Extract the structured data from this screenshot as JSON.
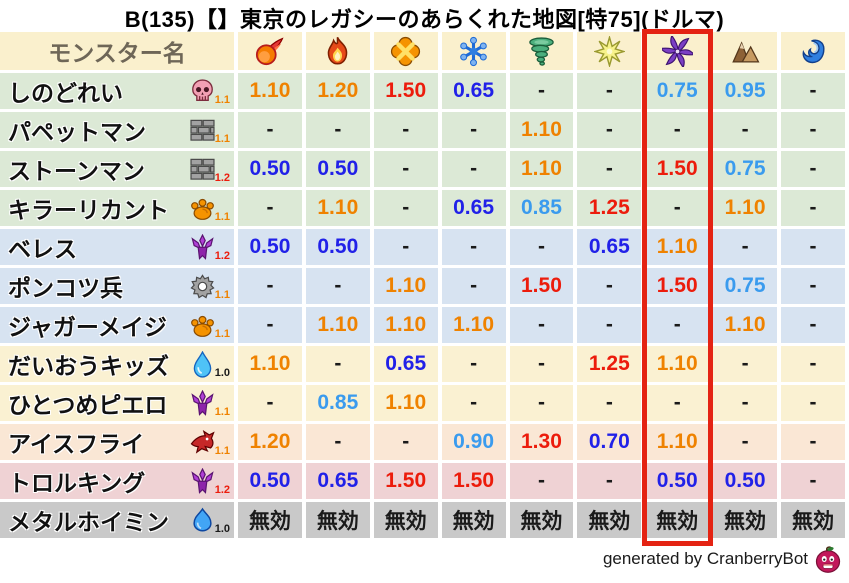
{
  "title": "B(135)【】東京のレガシーのあらくれた地図[特75](ドルマ)",
  "footer": {
    "text": "generated by CranberryBot",
    "icon": "cranberry-bot-icon"
  },
  "palette": {
    "header_bg": "#FAF0CD",
    "header_text": "#6E6657",
    "row_green": "#DCE9D6",
    "row_blue": "#D7E3F1",
    "row_cream": "#FAF1D2",
    "row_peach": "#FAE7D5",
    "row_pink": "#EFD2D4",
    "row_gray": "#C9C9C9",
    "orange": "#EF8200",
    "red": "#EC1C0C",
    "blue": "#2121E8",
    "lightblue": "#3A9BEE",
    "black": "#1A1A1A",
    "highlight_red": "#E42313"
  },
  "table": {
    "name_header": "モンスター名",
    "element_columns": [
      {
        "id": "mera",
        "icon": "fireball-icon"
      },
      {
        "id": "gira",
        "icon": "flame-icon"
      },
      {
        "id": "io",
        "icon": "explosion-icon"
      },
      {
        "id": "hyado",
        "icon": "ice-icon"
      },
      {
        "id": "bagi",
        "icon": "tornado-icon"
      },
      {
        "id": "dein",
        "icon": "spark-icon"
      },
      {
        "id": "dolma",
        "icon": "dark-pinwheel-icon",
        "highlighted": true
      },
      {
        "id": "earth",
        "icon": "mountain-icon"
      },
      {
        "id": "wave",
        "icon": "wave-icon"
      }
    ],
    "highlighted_column_index": 6,
    "rows": [
      {
        "name": "しのどれい",
        "family_icon": "skull-icon",
        "rate": "1.1",
        "rate_color": "orange",
        "row_color": "green",
        "values": [
          {
            "t": "1.10",
            "c": "orange"
          },
          {
            "t": "1.20",
            "c": "orange"
          },
          {
            "t": "1.50",
            "c": "red"
          },
          {
            "t": "0.65",
            "c": "blue"
          },
          {
            "t": "-",
            "c": "black"
          },
          {
            "t": "-",
            "c": "black"
          },
          {
            "t": "0.75",
            "c": "lightblue"
          },
          {
            "t": "0.95",
            "c": "lightblue"
          },
          {
            "t": "-",
            "c": "black"
          }
        ]
      },
      {
        "name": "パペットマン",
        "family_icon": "brick-icon",
        "rate": "1.1",
        "rate_color": "orange",
        "row_color": "green",
        "values": [
          {
            "t": "-",
            "c": "black"
          },
          {
            "t": "-",
            "c": "black"
          },
          {
            "t": "-",
            "c": "black"
          },
          {
            "t": "-",
            "c": "black"
          },
          {
            "t": "1.10",
            "c": "orange"
          },
          {
            "t": "-",
            "c": "black"
          },
          {
            "t": "-",
            "c": "black"
          },
          {
            "t": "-",
            "c": "black"
          },
          {
            "t": "-",
            "c": "black"
          }
        ]
      },
      {
        "name": "ストーンマン",
        "family_icon": "brick-icon",
        "rate": "1.2",
        "rate_color": "red",
        "row_color": "green",
        "values": [
          {
            "t": "0.50",
            "c": "blue"
          },
          {
            "t": "0.50",
            "c": "blue"
          },
          {
            "t": "-",
            "c": "black"
          },
          {
            "t": "-",
            "c": "black"
          },
          {
            "t": "1.10",
            "c": "orange"
          },
          {
            "t": "-",
            "c": "black"
          },
          {
            "t": "1.50",
            "c": "red"
          },
          {
            "t": "0.75",
            "c": "lightblue"
          },
          {
            "t": "-",
            "c": "black"
          }
        ]
      },
      {
        "name": "キラーリカント",
        "family_icon": "paw-icon",
        "rate": "1.1",
        "rate_color": "orange",
        "row_color": "green",
        "values": [
          {
            "t": "-",
            "c": "black"
          },
          {
            "t": "1.10",
            "c": "orange"
          },
          {
            "t": "-",
            "c": "black"
          },
          {
            "t": "0.65",
            "c": "blue"
          },
          {
            "t": "0.85",
            "c": "lightblue"
          },
          {
            "t": "1.25",
            "c": "red"
          },
          {
            "t": "-",
            "c": "black"
          },
          {
            "t": "1.10",
            "c": "orange"
          },
          {
            "t": "-",
            "c": "black"
          }
        ]
      },
      {
        "name": "ベレス",
        "family_icon": "demon-icon",
        "rate": "1.2",
        "rate_color": "red",
        "row_color": "blue",
        "values": [
          {
            "t": "0.50",
            "c": "blue"
          },
          {
            "t": "0.50",
            "c": "blue"
          },
          {
            "t": "-",
            "c": "black"
          },
          {
            "t": "-",
            "c": "black"
          },
          {
            "t": "-",
            "c": "black"
          },
          {
            "t": "0.65",
            "c": "blue"
          },
          {
            "t": "1.10",
            "c": "orange"
          },
          {
            "t": "-",
            "c": "black"
          },
          {
            "t": "-",
            "c": "black"
          }
        ]
      },
      {
        "name": "ポンコツ兵",
        "family_icon": "gear-icon",
        "rate": "1.1",
        "rate_color": "orange",
        "row_color": "blue",
        "values": [
          {
            "t": "-",
            "c": "black"
          },
          {
            "t": "-",
            "c": "black"
          },
          {
            "t": "1.10",
            "c": "orange"
          },
          {
            "t": "-",
            "c": "black"
          },
          {
            "t": "1.50",
            "c": "red"
          },
          {
            "t": "-",
            "c": "black"
          },
          {
            "t": "1.50",
            "c": "red"
          },
          {
            "t": "0.75",
            "c": "lightblue"
          },
          {
            "t": "-",
            "c": "black"
          }
        ]
      },
      {
        "name": "ジャガーメイジ",
        "family_icon": "paw-icon",
        "rate": "1.1",
        "rate_color": "orange",
        "row_color": "blue",
        "values": [
          {
            "t": "-",
            "c": "black"
          },
          {
            "t": "1.10",
            "c": "orange"
          },
          {
            "t": "1.10",
            "c": "orange"
          },
          {
            "t": "1.10",
            "c": "orange"
          },
          {
            "t": "-",
            "c": "black"
          },
          {
            "t": "-",
            "c": "black"
          },
          {
            "t": "-",
            "c": "black"
          },
          {
            "t": "1.10",
            "c": "orange"
          },
          {
            "t": "-",
            "c": "black"
          }
        ]
      },
      {
        "name": "だいおうキッズ",
        "family_icon": "drop-icon",
        "rate": "1.0",
        "rate_color": "black",
        "row_color": "cream",
        "values": [
          {
            "t": "1.10",
            "c": "orange"
          },
          {
            "t": "-",
            "c": "black"
          },
          {
            "t": "0.65",
            "c": "blue"
          },
          {
            "t": "-",
            "c": "black"
          },
          {
            "t": "-",
            "c": "black"
          },
          {
            "t": "1.25",
            "c": "red"
          },
          {
            "t": "1.10",
            "c": "orange"
          },
          {
            "t": "-",
            "c": "black"
          },
          {
            "t": "-",
            "c": "black"
          }
        ]
      },
      {
        "name": "ひとつめピエロ",
        "family_icon": "demon-icon",
        "rate": "1.1",
        "rate_color": "orange",
        "row_color": "cream",
        "values": [
          {
            "t": "-",
            "c": "black"
          },
          {
            "t": "0.85",
            "c": "lightblue"
          },
          {
            "t": "1.10",
            "c": "orange"
          },
          {
            "t": "-",
            "c": "black"
          },
          {
            "t": "-",
            "c": "black"
          },
          {
            "t": "-",
            "c": "black"
          },
          {
            "t": "-",
            "c": "black"
          },
          {
            "t": "-",
            "c": "black"
          },
          {
            "t": "-",
            "c": "black"
          }
        ]
      },
      {
        "name": "アイスフライ",
        "family_icon": "dragon-icon",
        "rate": "1.1",
        "rate_color": "orange",
        "row_color": "peach",
        "values": [
          {
            "t": "1.20",
            "c": "orange"
          },
          {
            "t": "-",
            "c": "black"
          },
          {
            "t": "-",
            "c": "black"
          },
          {
            "t": "0.90",
            "c": "lightblue"
          },
          {
            "t": "1.30",
            "c": "red"
          },
          {
            "t": "0.70",
            "c": "blue"
          },
          {
            "t": "1.10",
            "c": "orange"
          },
          {
            "t": "-",
            "c": "black"
          },
          {
            "t": "-",
            "c": "black"
          }
        ]
      },
      {
        "name": "トロルキング",
        "family_icon": "demon-icon",
        "rate": "1.2",
        "rate_color": "red",
        "row_color": "pink",
        "values": [
          {
            "t": "0.50",
            "c": "blue"
          },
          {
            "t": "0.65",
            "c": "blue"
          },
          {
            "t": "1.50",
            "c": "red"
          },
          {
            "t": "1.50",
            "c": "red"
          },
          {
            "t": "-",
            "c": "black"
          },
          {
            "t": "-",
            "c": "black"
          },
          {
            "t": "0.50",
            "c": "blue"
          },
          {
            "t": "0.50",
            "c": "blue"
          },
          {
            "t": "-",
            "c": "black"
          }
        ]
      },
      {
        "name": "メタルホイミン",
        "family_icon": "slime-icon",
        "rate": "1.0",
        "rate_color": "black",
        "row_color": "gray",
        "values": [
          {
            "t": "無効",
            "c": "black"
          },
          {
            "t": "無効",
            "c": "black"
          },
          {
            "t": "無効",
            "c": "black"
          },
          {
            "t": "無効",
            "c": "black"
          },
          {
            "t": "無効",
            "c": "black"
          },
          {
            "t": "無効",
            "c": "black"
          },
          {
            "t": "無効",
            "c": "black"
          },
          {
            "t": "無効",
            "c": "black"
          },
          {
            "t": "無効",
            "c": "black"
          }
        ]
      }
    ]
  }
}
